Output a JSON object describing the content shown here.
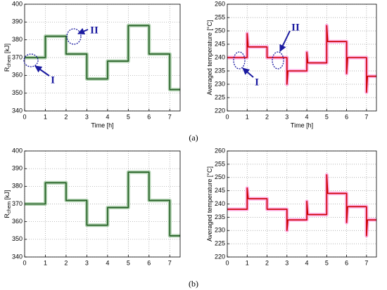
{
  "panel_labels": [
    "(a)",
    "(b)"
  ],
  "chart_data": [
    {
      "type": "line",
      "xlabel": "Time [h]",
      "ylabel": {
        "main": "R",
        "sub": "chem",
        "unit": " [kJ]"
      },
      "xlim": [
        0,
        7.5
      ],
      "xticks": [
        0,
        1,
        2,
        3,
        4,
        5,
        6,
        7
      ],
      "ylim": [
        340,
        400
      ],
      "yticks": [
        340,
        350,
        360,
        370,
        380,
        390,
        400
      ],
      "grid": true,
      "annotations": [
        "I",
        "II"
      ],
      "series": [
        {
          "color": "#1e5a1e",
          "halo": "#9cc59c",
          "x": [
            0,
            1,
            1,
            2,
            2,
            3,
            3,
            4,
            4,
            5,
            5,
            6,
            6,
            7,
            7,
            7.5
          ],
          "values": [
            370,
            370,
            382,
            382,
            372,
            372,
            358,
            358,
            368,
            368,
            388,
            388,
            372,
            372,
            352,
            352
          ]
        }
      ]
    },
    {
      "type": "line",
      "xlabel": "Time [h]",
      "ylabel": {
        "main": "Averaged temperature [°C]"
      },
      "xlim": [
        0,
        7.5
      ],
      "xticks": [
        0,
        1,
        2,
        3,
        4,
        5,
        6,
        7
      ],
      "ylim": [
        220,
        260
      ],
      "yticks": [
        220,
        225,
        230,
        235,
        240,
        245,
        250,
        255,
        260
      ],
      "grid": true,
      "annotations": [
        "I",
        "II"
      ],
      "series": [
        {
          "color": "#cc0000",
          "halo": "#ff99dd",
          "x": [
            0,
            1,
            1,
            1.05,
            2,
            2,
            3,
            3,
            3.05,
            4,
            4,
            4.05,
            5,
            5,
            5.05,
            6,
            6,
            6.05,
            7,
            7,
            7.05,
            7.5
          ],
          "values": [
            240,
            240,
            249,
            244,
            244,
            240,
            240,
            230,
            235,
            235,
            242,
            238,
            238,
            252,
            246,
            246,
            234,
            240,
            240,
            227,
            233,
            233
          ]
        }
      ]
    },
    {
      "type": "line",
      "ylabel": {
        "main": "R",
        "sub": "chem",
        "unit": " [kJ]"
      },
      "xlim": [
        0,
        7.5
      ],
      "xticks": [
        0,
        1,
        2,
        3,
        4,
        5,
        6,
        7
      ],
      "ylim": [
        340,
        400
      ],
      "yticks": [
        340,
        350,
        360,
        370,
        380,
        390,
        400
      ],
      "grid": true,
      "series": [
        {
          "color": "#1e5a1e",
          "halo": "#9cc59c",
          "x": [
            0,
            1,
            1,
            2,
            2,
            3,
            3,
            4,
            4,
            5,
            5,
            6,
            6,
            7,
            7,
            7.5
          ],
          "values": [
            370,
            370,
            382,
            382,
            372,
            372,
            358,
            358,
            368,
            368,
            388,
            388,
            372,
            372,
            352,
            352
          ]
        }
      ]
    },
    {
      "type": "line",
      "ylabel": {
        "main": "Averaged temperature [°C]"
      },
      "xlim": [
        0,
        7.5
      ],
      "xticks": [
        0,
        1,
        2,
        3,
        4,
        5,
        6,
        7
      ],
      "ylim": [
        220,
        260
      ],
      "yticks": [
        220,
        225,
        230,
        235,
        240,
        245,
        250,
        255,
        260
      ],
      "grid": true,
      "series": [
        {
          "color": "#cc0000",
          "halo": "#ff99dd",
          "x": [
            0,
            1,
            1,
            1.05,
            2,
            2,
            3,
            3,
            3.05,
            4,
            4,
            4.05,
            5,
            5,
            5.05,
            6,
            6,
            6.05,
            7,
            7,
            7.05,
            7.5
          ],
          "values": [
            238,
            238,
            246,
            242,
            242,
            238,
            238,
            230,
            234,
            234,
            241,
            236,
            236,
            251,
            244,
            244,
            233,
            239,
            239,
            228,
            234,
            234
          ]
        }
      ]
    }
  ]
}
